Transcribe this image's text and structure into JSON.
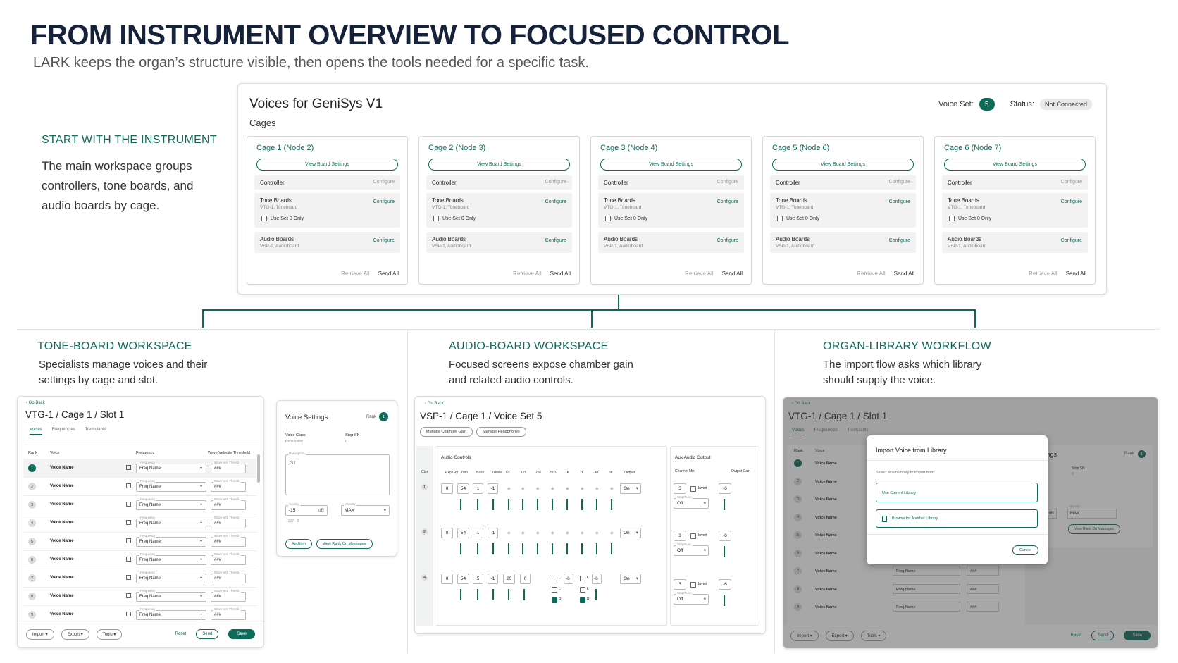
{
  "header": {
    "title": "FROM INSTRUMENT OVERVIEW TO FOCUSED CONTROL",
    "subtitle": "LARK keeps the organ’s structure visible, then opens the tools needed for a specific task."
  },
  "intro": {
    "heading": "START WITH THE INSTRUMENT",
    "lines": [
      "The main workspace groups",
      "controllers, tone boards, and",
      "audio boards by cage."
    ]
  },
  "overview": {
    "title": "Voices for GeniSys V1",
    "section": "Cages",
    "voice_set_label": "Voice Set:",
    "voice_set_value": "5",
    "status_label": "Status:",
    "status_value": "Not Connected",
    "view_board_settings": "View Board Settings",
    "controller_label": "Controller",
    "configure": "Configure",
    "tone_boards_label": "Tone Boards",
    "tone_boards_sub": "VTG-1, Toneboard",
    "use_set_label": "Use Set 0 Only",
    "audio_boards_label": "Audio Boards",
    "audio_boards_sub": "VSP-1, Audioboard",
    "retrieve_all": "Retrieve All",
    "send_all": "Send All",
    "cages": [
      "Cage 1 (Node 2)",
      "Cage 2 (Node 3)",
      "Cage 3 (Node 4)",
      "Cage 5 (Node 6)",
      "Cage 6 (Node 7)"
    ]
  },
  "sections": {
    "tone": {
      "heading": "TONE-BOARD WORKSPACE",
      "lines": [
        "Specialists manage voices and their",
        "settings by cage and slot."
      ]
    },
    "audio": {
      "heading": "AUDIO-BOARD WORKSPACE",
      "lines": [
        "Focused screens expose chamber gain",
        "and related audio controls."
      ]
    },
    "library": {
      "heading": "ORGAN-LIBRARY WORKFLOW",
      "lines": [
        "The import flow asks which library",
        "should supply the voice."
      ]
    }
  },
  "tone_panel": {
    "go_back": "‹ Go Back",
    "title": "VTG-1 / Cage 1 / Slot 1",
    "tabs": [
      "Voices",
      "Frequencies",
      "Tremulants"
    ],
    "columns": [
      "Rank",
      "Voice",
      "Frequency",
      "Wave Velocity Threshold"
    ],
    "rows": [
      "1",
      "2",
      "3",
      "4",
      "5",
      "6",
      "7",
      "8",
      "9"
    ],
    "voice_name": "Voice Name",
    "freq_label": "Frequency",
    "freq_name": "Freq Name",
    "wave_label": "Wave Vel. Thresh.",
    "wave_value": "###",
    "footer": {
      "import": "Import ▾",
      "export": "Export ▾",
      "tools": "Tools ▾",
      "reset": "Reset",
      "send": "Send",
      "save": "Save"
    }
  },
  "voice_settings": {
    "title": "Voice Settings",
    "rank_label": "Rank",
    "rank_value": "1",
    "voice_class_label": "Voice Class",
    "voice_class_value": "Percussion",
    "stop_sn_label": "Stop SN",
    "stop_sn_value": "0",
    "description_label": "Description",
    "description_value": "GT",
    "scaling_label": "Scaling",
    "scaling_value": "-15",
    "scaling_unit": "dB",
    "scaling_range": "-127 - 0",
    "velocity_label": "Velocity",
    "velocity_value": "MAX",
    "audition": "Audition",
    "view_rank": "View Rank On Messages"
  },
  "audio_panel": {
    "go_back": "‹ Go Back",
    "title": "VSP-1 / Cage 1 / Voice Set 5",
    "btn_chamber": "Manage Chamber Gain",
    "btn_headphones": "Manage Headphones",
    "audio_controls": "Audio Controls",
    "chn": "Chn",
    "columns": [
      "Exp Grp",
      "Trim",
      "Bass",
      "Treble",
      "63",
      "125",
      "250",
      "500",
      "1K",
      "2K",
      "4K",
      "8K",
      "Output"
    ],
    "rows": [
      {
        "chn": "1",
        "exp": "0",
        "trim": "54",
        "bass": "1",
        "treble": "-1",
        "output": "On"
      },
      {
        "chn": "2",
        "exp": "0",
        "trim": "54",
        "bass": "1",
        "treble": "-1",
        "output": "On"
      },
      {
        "chn": "4",
        "exp": "0",
        "trim": "54",
        "bass": "5",
        "treble": "-1",
        "k63": "20",
        "k125": "0",
        "output": "On"
      }
    ],
    "aux_title": "Aux Audio Output",
    "channel_mix": "Channel Mix",
    "output_gain": "Output Gain",
    "aux_rows": [
      {
        "mix": "3",
        "invert": "Invert",
        "gain": "-6",
        "stop_label": "Stop/Func",
        "stop_value": "Off"
      },
      {
        "mix": "3",
        "invert": "Invert",
        "gain": "-6",
        "stop_label": "Stop/Func",
        "stop_value": "Off"
      },
      {
        "mix": "3",
        "invert": "Invert",
        "gain": "-6",
        "stop_label": "Stop/Func",
        "stop_value": "Off"
      }
    ],
    "lr": {
      "l": "L",
      "r": "R",
      "v": "-6"
    }
  },
  "library_panel": {
    "go_back": "‹ Go Back",
    "title": "VTG-1 / Cage 1 / Slot 1",
    "tabs": [
      "Voices",
      "Frequencies",
      "Tremulants"
    ],
    "bg_settings": "e Settings",
    "rank_label": "Rank",
    "stop_sn": "Stop SN",
    "zero": "0",
    "db": "dB",
    "velocity": "Velocity",
    "max": "MAX",
    "view_rank": "View Rank On Messages",
    "dialog_title": "Import Voice from Library",
    "dialog_prompt": "Select which library to import from.",
    "use_current": "Use Current Library",
    "browse": "Browse for Another Library",
    "cancel": "Cancel",
    "footer": {
      "import": "Import ▾",
      "export": "Export ▾",
      "tools": "Tools ▾",
      "reset": "Reset",
      "send": "Send",
      "save": "Save"
    }
  }
}
